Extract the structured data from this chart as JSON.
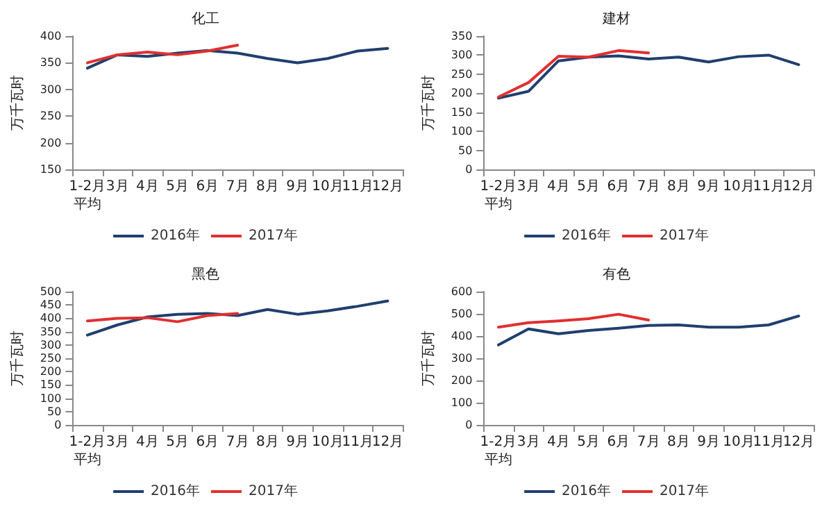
{
  "chart_data": [
    {
      "type": "line",
      "title": "化工",
      "ylabel": "万千瓦时",
      "categories": [
        "1-2月平均",
        "3月",
        "4月",
        "5月",
        "6月",
        "7月",
        "8月",
        "9月",
        "10月",
        "11月",
        "12月"
      ],
      "ylim": [
        150,
        400
      ],
      "yticks": [
        150,
        200,
        250,
        300,
        350,
        400
      ],
      "grid": false,
      "legend": "bottom",
      "marker": "none",
      "series": [
        {
          "name": "2016年",
          "color": "#1f3f6e",
          "values": [
            340,
            365,
            362,
            368,
            373,
            368,
            358,
            350,
            358,
            372,
            377
          ]
        },
        {
          "name": "2017年",
          "color": "#e03030",
          "values": [
            350,
            365,
            370,
            365,
            372,
            383,
            null,
            null,
            null,
            null,
            null
          ]
        }
      ]
    },
    {
      "type": "line",
      "title": "建材",
      "ylabel": "万千瓦时",
      "categories": [
        "1-2月平均",
        "3月",
        "4月",
        "5月",
        "6月",
        "7月",
        "8月",
        "9月",
        "10月",
        "11月",
        "12月"
      ],
      "ylim": [
        0,
        350
      ],
      "yticks": [
        0,
        50,
        100,
        150,
        200,
        250,
        300,
        350
      ],
      "grid": false,
      "legend": "bottom",
      "marker": "none",
      "series": [
        {
          "name": "2016年",
          "color": "#1f3f6e",
          "values": [
            187,
            205,
            285,
            295,
            298,
            290,
            295,
            282,
            296,
            300,
            275
          ]
        },
        {
          "name": "2017年",
          "color": "#e03030",
          "values": [
            190,
            228,
            297,
            295,
            312,
            306,
            null,
            null,
            null,
            null,
            null
          ]
        }
      ]
    },
    {
      "type": "line",
      "title": "黑色",
      "ylabel": "万千瓦时",
      "categories": [
        "1-2月平均",
        "3月",
        "4月",
        "5月",
        "6月",
        "7月",
        "8月",
        "9月",
        "10月",
        "11月",
        "12月"
      ],
      "ylim": [
        0,
        500
      ],
      "yticks": [
        0,
        50,
        100,
        150,
        200,
        250,
        300,
        350,
        400,
        450,
        500
      ],
      "grid": false,
      "legend": "bottom",
      "marker": "none",
      "series": [
        {
          "name": "2016年",
          "color": "#1f3f6e",
          "values": [
            337,
            375,
            405,
            415,
            418,
            410,
            433,
            415,
            428,
            445,
            465
          ]
        },
        {
          "name": "2017年",
          "color": "#e03030",
          "values": [
            390,
            400,
            402,
            387,
            410,
            418,
            null,
            null,
            null,
            null,
            null
          ]
        }
      ]
    },
    {
      "type": "line",
      "title": "有色",
      "ylabel": "万千瓦时",
      "categories": [
        "1-2月平均",
        "3月",
        "4月",
        "5月",
        "6月",
        "7月",
        "8月",
        "9月",
        "10月",
        "11月",
        "12月"
      ],
      "ylim": [
        0,
        600
      ],
      "yticks": [
        0,
        100,
        200,
        300,
        400,
        500,
        600
      ],
      "grid": false,
      "legend": "bottom",
      "marker": "none",
      "series": [
        {
          "name": "2016年",
          "color": "#1f3f6e",
          "values": [
            360,
            432,
            410,
            425,
            435,
            448,
            450,
            440,
            440,
            450,
            490
          ]
        },
        {
          "name": "2017年",
          "color": "#e03030",
          "values": [
            440,
            460,
            468,
            478,
            498,
            472,
            null,
            null,
            null,
            null,
            null
          ]
        }
      ]
    }
  ]
}
